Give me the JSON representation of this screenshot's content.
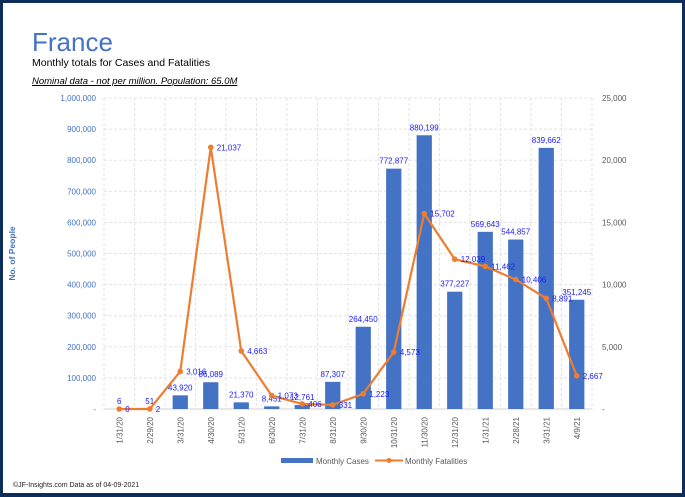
{
  "header": {
    "title": "France",
    "subtitle": "Monthly totals for Cases and Fatalities",
    "note": "Nominal data - not per million.  Population: 65.0M"
  },
  "footer": "©JF-Insights.com  Data as of 04-09-2021",
  "colors": {
    "cases": "#4472c4",
    "fatalities": "#ed7d31",
    "labels": "#1a1aff",
    "border": "#0d2d5a"
  },
  "chart_data": {
    "type": "bar",
    "title": "France",
    "subtitle": "Monthly totals for Cases and Fatalities",
    "ylabel": "No. of People",
    "ylim": [
      0,
      1000000
    ],
    "y2lim": [
      0,
      25000
    ],
    "yticks": [
      "-",
      "100,000",
      "200,000",
      "300,000",
      "400,000",
      "500,000",
      "600,000",
      "700,000",
      "800,000",
      "900,000",
      "1,000,000"
    ],
    "y2ticks": [
      "-",
      "5,000",
      "10,000",
      "15,000",
      "20,000",
      "25,000"
    ],
    "grid": true,
    "legend": "bottom",
    "categories": [
      "1/31/20",
      "2/29/20",
      "3/31/20",
      "4/30/20",
      "5/31/20",
      "6/30/20",
      "7/31/20",
      "8/31/20",
      "9/30/20",
      "10/31/20",
      "11/30/20",
      "12/31/20",
      "1/31/21",
      "2/28/21",
      "3/31/21",
      "4/9/21"
    ],
    "series": [
      {
        "name": "Monthly Cases",
        "type": "bar",
        "axis": "left",
        "values": [
          6,
          51,
          43920,
          86089,
          21370,
          8451,
          12761,
          87307,
          264450,
          772877,
          880199,
          377227,
          569643,
          544857,
          839662,
          351245
        ],
        "labels": [
          "6",
          "51",
          "43,920",
          "86,089",
          "21,370",
          "8,451",
          "12,761",
          "87,307",
          "264,450",
          "772,877",
          "880,199",
          "377,227",
          "569,643",
          "544,857",
          "839,662",
          "351,245"
        ]
      },
      {
        "name": "Monthly Fatalities",
        "type": "line",
        "axis": "right",
        "values": [
          0,
          2,
          3016,
          21037,
          4663,
          1073,
          406,
          331,
          1223,
          4573,
          15702,
          12039,
          11462,
          10406,
          8891,
          2667
        ],
        "labels": [
          "0",
          "2",
          "3,016",
          "21,037",
          "4,663",
          "1,073",
          "406",
          "331",
          "1,223",
          "4,573",
          "15,702",
          "12,039",
          "11,462",
          "10,406",
          "8,891",
          "2,667"
        ]
      }
    ]
  }
}
